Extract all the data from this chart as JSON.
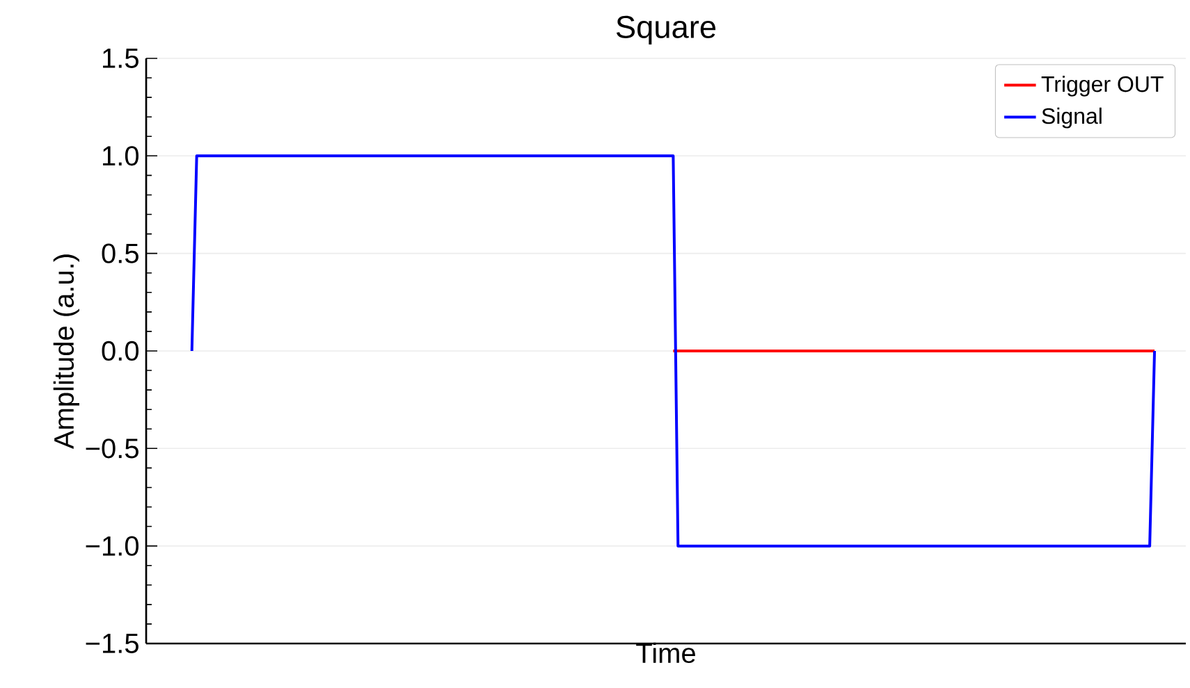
{
  "chart_data": {
    "type": "line",
    "title": "Square",
    "xlabel": "Time",
    "ylabel": "Amplitude (a.u.)",
    "ylim": [
      -1.5,
      1.5
    ],
    "categories": [
      null,
      null,
      null,
      null,
      null,
      null,
      null,
      null,
      null,
      null,
      null,
      null,
      null,
      null,
      null,
      null,
      null,
      null,
      null,
      null,
      null,
      null,
      null,
      null,
      null,
      null,
      null,
      null,
      null,
      null,
      null,
      null,
      null,
      null,
      null,
      null,
      null,
      null,
      null,
      null,
      null,
      null,
      null,
      null,
      null,
      null,
      null,
      null,
      null,
      null,
      null,
      null,
      null,
      null,
      null,
      null,
      null,
      null,
      null,
      null,
      null,
      null,
      null,
      null,
      null,
      null,
      null,
      null,
      null,
      null,
      null,
      null,
      null,
      null,
      null,
      null,
      null,
      null,
      null,
      null,
      null,
      null,
      null,
      null,
      null,
      null,
      null,
      null,
      null,
      null,
      null,
      null,
      null,
      null,
      null,
      null,
      null,
      null,
      null,
      null,
      null,
      null,
      null,
      null,
      null,
      null,
      null,
      null,
      null,
      null,
      null,
      null,
      null,
      null,
      null,
      null,
      null,
      null,
      null,
      null,
      null,
      null,
      null,
      null,
      null,
      null,
      null,
      null,
      null,
      null,
      null,
      null,
      null,
      null,
      null,
      null,
      null,
      null,
      null,
      null,
      null,
      null,
      null,
      null,
      null,
      null,
      null,
      null,
      null,
      null,
      null,
      null,
      null,
      null,
      null,
      null,
      null,
      null,
      null,
      null,
      null,
      null,
      null,
      null,
      null,
      null,
      null,
      null,
      null,
      null,
      null,
      null,
      null,
      null,
      null,
      null,
      null,
      null,
      null,
      null,
      null,
      null,
      null,
      null,
      null,
      null,
      null,
      null,
      null,
      null,
      null,
      null,
      null,
      null,
      null,
      null,
      null,
      null,
      null,
      null,
      null,
      null,
      null,
      null,
      null,
      null,
      null,
      null,
      null,
      null,
      null,
      null,
      null,
      null,
      null,
      null
    ],
    "yticks": [
      {
        "value": -1.5,
        "label": "−1.5"
      },
      {
        "value": -1.0,
        "label": "−1.0"
      },
      {
        "value": -0.5,
        "label": "−0.5"
      },
      {
        "value": 0,
        "label": "0.0"
      },
      {
        "value": 0.5,
        "label": "0.5"
      },
      {
        "value": 1.0,
        "label": "1.0"
      },
      {
        "value": 1.5,
        "label": "1.5"
      }
    ],
    "tick_labels": "y",
    "grid": "y",
    "legend": "top right",
    "series": [
      {
        "name": "Trigger OUT",
        "color": "#ff0000",
        "values": [
          null,
          null,
          null,
          null,
          null,
          null,
          null,
          null,
          null,
          null,
          null,
          null,
          null,
          null,
          null,
          null,
          null,
          null,
          null,
          null,
          null,
          null,
          null,
          null,
          null,
          null,
          null,
          null,
          null,
          null,
          null,
          null,
          null,
          null,
          null,
          null,
          null,
          null,
          null,
          null,
          null,
          null,
          null,
          null,
          null,
          null,
          null,
          null,
          null,
          null,
          null,
          null,
          null,
          null,
          null,
          null,
          null,
          null,
          null,
          null,
          null,
          null,
          null,
          null,
          null,
          null,
          null,
          null,
          null,
          null,
          null,
          null,
          null,
          null,
          null,
          null,
          null,
          null,
          null,
          null,
          null,
          null,
          null,
          null,
          null,
          null,
          null,
          null,
          null,
          null,
          null,
          null,
          null,
          null,
          null,
          null,
          null,
          null,
          null,
          null,
          null,
          null,
          null,
          null,
          null,
          null,
          null,
          null,
          null,
          0,
          0,
          0,
          0,
          0,
          0,
          0,
          0,
          0,
          0,
          0,
          0,
          0,
          0,
          0,
          0,
          0,
          0,
          0,
          0,
          0,
          0,
          0,
          0,
          0,
          0,
          0,
          0,
          0,
          0,
          0,
          0,
          0,
          0,
          0,
          0,
          0,
          0,
          0,
          0,
          0,
          0,
          0,
          0,
          0,
          0,
          0,
          0,
          0,
          0,
          0,
          0,
          0,
          0,
          0,
          0,
          0,
          0,
          0,
          0,
          0,
          0,
          0,
          0,
          0,
          0,
          0,
          0,
          0,
          0,
          0,
          0,
          0,
          0,
          0,
          0,
          0,
          0,
          0,
          0,
          0,
          0,
          0,
          0,
          0,
          0,
          0,
          0,
          0,
          0,
          0,
          0,
          0,
          0,
          0,
          0,
          0,
          0,
          0,
          0,
          0,
          null,
          null,
          null,
          null,
          null,
          null
        ]
      },
      {
        "name": "Signal",
        "color": "#0000ff",
        "values": [
          null,
          null,
          null,
          null,
          null,
          null,
          null,
          null,
          null,
          0,
          1,
          1,
          1,
          1,
          1,
          1,
          1,
          1,
          1,
          1,
          1,
          1,
          1,
          1,
          1,
          1,
          1,
          1,
          1,
          1,
          1,
          1,
          1,
          1,
          1,
          1,
          1,
          1,
          1,
          1,
          1,
          1,
          1,
          1,
          1,
          1,
          1,
          1,
          1,
          1,
          1,
          1,
          1,
          1,
          1,
          1,
          1,
          1,
          1,
          1,
          1,
          1,
          1,
          1,
          1,
          1,
          1,
          1,
          1,
          1,
          1,
          1,
          1,
          1,
          1,
          1,
          1,
          1,
          1,
          1,
          1,
          1,
          1,
          1,
          1,
          1,
          1,
          1,
          1,
          1,
          1,
          1,
          1,
          1,
          1,
          1,
          1,
          1,
          1,
          1,
          1,
          1,
          1,
          1,
          1,
          1,
          1,
          1,
          1,
          1,
          -1,
          -1,
          -1,
          -1,
          -1,
          -1,
          -1,
          -1,
          -1,
          -1,
          -1,
          -1,
          -1,
          -1,
          -1,
          -1,
          -1,
          -1,
          -1,
          -1,
          -1,
          -1,
          -1,
          -1,
          -1,
          -1,
          -1,
          -1,
          -1,
          -1,
          -1,
          -1,
          -1,
          -1,
          -1,
          -1,
          -1,
          -1,
          -1,
          -1,
          -1,
          -1,
          -1,
          -1,
          -1,
          -1,
          -1,
          -1,
          -1,
          -1,
          -1,
          -1,
          -1,
          -1,
          -1,
          -1,
          -1,
          -1,
          -1,
          -1,
          -1,
          -1,
          -1,
          -1,
          -1,
          -1,
          -1,
          -1,
          -1,
          -1,
          -1,
          -1,
          -1,
          -1,
          -1,
          -1,
          -1,
          -1,
          -1,
          -1,
          -1,
          -1,
          -1,
          -1,
          -1,
          -1,
          -1,
          -1,
          -1,
          -1,
          -1,
          -1,
          -1,
          -1,
          -1,
          -1,
          -1,
          -1,
          -1,
          0,
          null,
          null,
          null,
          null,
          null,
          null
        ]
      }
    ]
  }
}
